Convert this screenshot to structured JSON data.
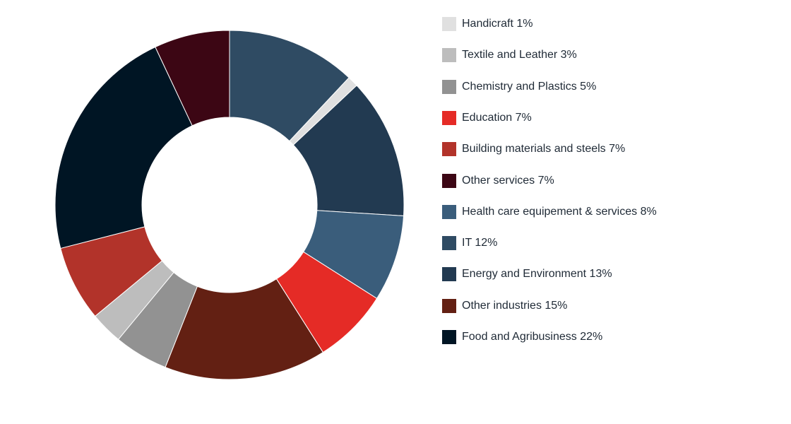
{
  "chart_data": {
    "type": "pie",
    "variant": "donut",
    "legend_position": "right",
    "slices": [
      {
        "label": "IT 12%",
        "value": 12,
        "color": "#2f4b63"
      },
      {
        "label": "Handicraft 1%",
        "value": 1,
        "color": "#e0e0e0"
      },
      {
        "label": "Energy and Environment 13%",
        "value": 13,
        "color": "#223a51"
      },
      {
        "label": "Health care equipement & services 8%",
        "value": 8,
        "color": "#3a5d7b"
      },
      {
        "label": "Education 7%",
        "value": 7,
        "color": "#e52b26"
      },
      {
        "label": "Other industries 15%",
        "value": 15,
        "color": "#632013"
      },
      {
        "label": "Chemistry and Plastics 5%",
        "value": 5,
        "color": "#929292"
      },
      {
        "label": "Textile and Leather 3%",
        "value": 3,
        "color": "#bdbdbd"
      },
      {
        "label": "Building materials and steels 7%",
        "value": 7,
        "color": "#b2332a"
      },
      {
        "label": "Food and Agribusiness 22%",
        "value": 22,
        "color": "#001524"
      },
      {
        "label": "Other services 7%",
        "value": 7,
        "color": "#3c0614"
      }
    ],
    "legend": [
      {
        "label": "Handicraft 1%",
        "color": "#e0e0e0"
      },
      {
        "label": "Textile and Leather 3%",
        "color": "#bdbdbd"
      },
      {
        "label": "Chemistry and Plastics 5%",
        "color": "#929292"
      },
      {
        "label": "Education 7%",
        "color": "#e52b26"
      },
      {
        "label": "Building materials and steels 7%",
        "color": "#b2332a"
      },
      {
        "label": "Other services 7%",
        "color": "#3c0614"
      },
      {
        "label": "Health care equipement & services 8%",
        "color": "#3a5d7b"
      },
      {
        "label": "IT 12%",
        "color": "#2f4b63"
      },
      {
        "label": "Energy and Environment 13%",
        "color": "#223a51"
      },
      {
        "label": "Other industries 15%",
        "color": "#632013"
      },
      {
        "label": "Food and Agribusiness 22%",
        "color": "#001524"
      }
    ]
  }
}
